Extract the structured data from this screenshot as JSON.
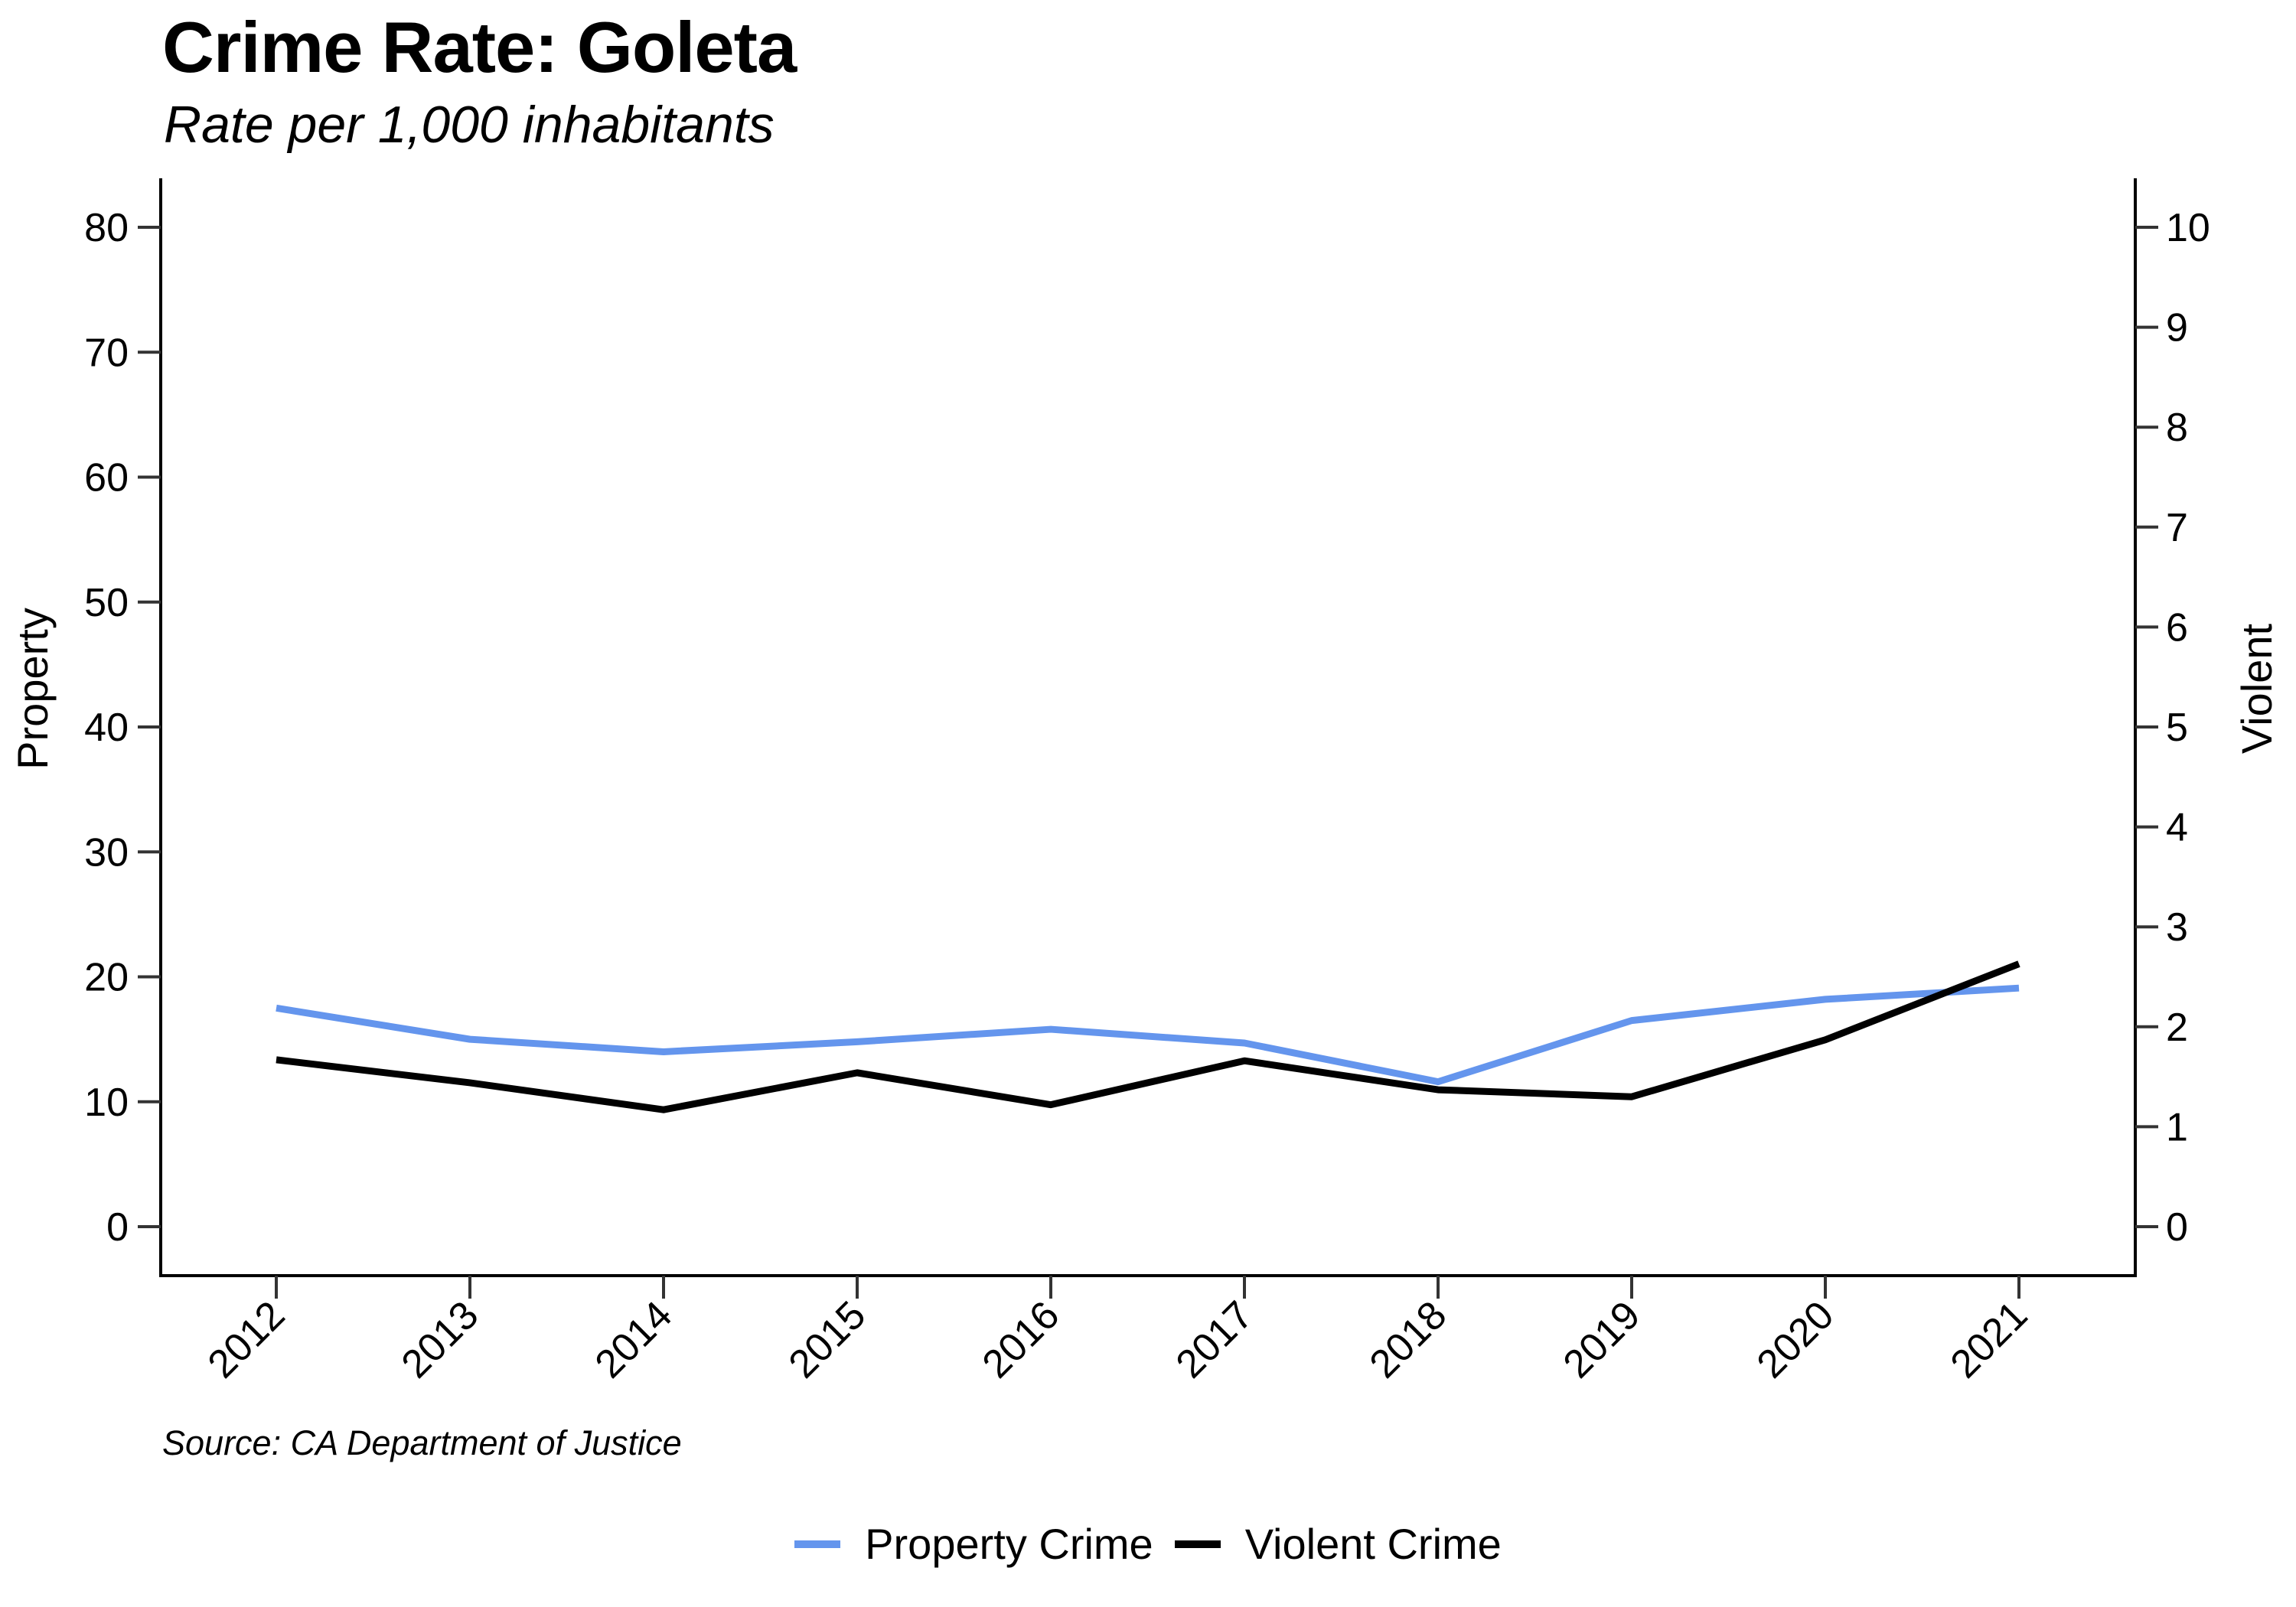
{
  "title": "Crime Rate: Goleta",
  "subtitle": "Rate per 1,000 inhabitants",
  "source": "Source: CA Department of Justice",
  "colors": {
    "property": "#6495ED",
    "violent": "#000000"
  },
  "chart_data": {
    "type": "line",
    "title": "Crime Rate: Goleta",
    "subtitle": "Rate per 1,000 inhabitants",
    "x": [
      "2012",
      "2013",
      "2014",
      "2015",
      "2016",
      "2017",
      "2018",
      "2019",
      "2020",
      "2021"
    ],
    "xlabel": "",
    "ylabel_left": "Property",
    "ylabel_right": "Violent",
    "ylim_left": [
      0,
      80
    ],
    "ylim_right": [
      0,
      10
    ],
    "yticks_left": [
      "0",
      "10",
      "20",
      "30",
      "40",
      "50",
      "60",
      "70",
      "80"
    ],
    "yticks_right": [
      "0",
      "1",
      "2",
      "3",
      "4",
      "5",
      "6",
      "7",
      "8",
      "9",
      "10"
    ],
    "grid": false,
    "legend_position": "bottom",
    "series": [
      {
        "name": "Property Crime",
        "axis": "left",
        "color": "#6495ED",
        "values": [
          17.5,
          15.0,
          14.0,
          14.8,
          15.8,
          14.7,
          11.6,
          16.5,
          18.2,
          19.1
        ]
      },
      {
        "name": "Violent Crime",
        "axis": "right",
        "color": "#000000",
        "values": [
          1.67,
          1.44,
          1.17,
          1.54,
          1.22,
          1.66,
          1.37,
          1.3,
          1.87,
          2.63
        ]
      }
    ]
  }
}
